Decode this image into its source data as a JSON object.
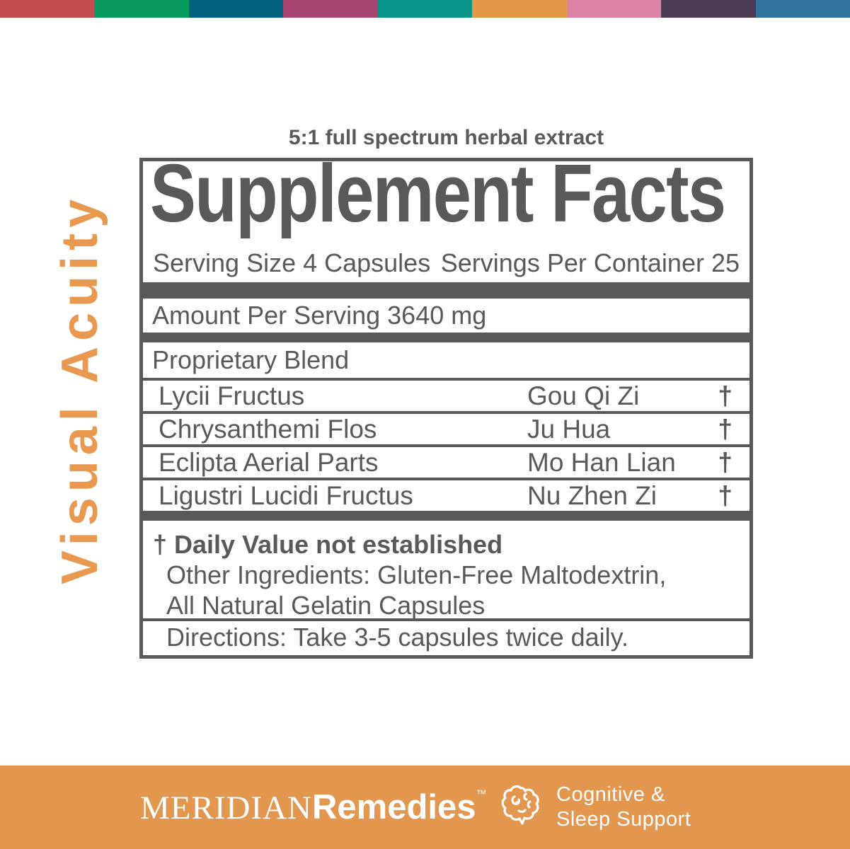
{
  "top_bar": {
    "colors": [
      "#C54D4F",
      "#089A5F",
      "#04607F",
      "#A84571",
      "#089488",
      "#E29847",
      "#DC83A5",
      "#4D3C54",
      "#32739E"
    ]
  },
  "side_label": "Visual Acuity",
  "tagline": "5:1 full spectrum herbal extract",
  "panel": {
    "title": "Supplement Facts",
    "serving_size": "Serving Size 4 Capsules",
    "servings_per_container": "Servings Per Container 25",
    "amount_per_serving": "Amount Per Serving 3640 mg",
    "blend_title": "Proprietary Blend",
    "ingredients": [
      {
        "name": "Lycii Fructus",
        "pinyin": "Gou Qi Zi",
        "daily_value": "†"
      },
      {
        "name": "Chrysanthemi Flos",
        "pinyin": "Ju Hua",
        "daily_value": "†"
      },
      {
        "name": "Eclipta Aerial Parts",
        "pinyin": "Mo Han Lian",
        "daily_value": "†"
      },
      {
        "name": "Ligustri Lucidi Fructus",
        "pinyin": "Nu Zhen Zi",
        "daily_value": "†"
      }
    ],
    "footnote": "† Daily Value not established",
    "other_ingredients_line1": "Other Ingredients: Gluten-Free Maltodextrin,",
    "other_ingredients_line2": "All Natural Gelatin Capsules",
    "directions": "Directions: Take 3-5 capsules twice daily."
  },
  "brand_bar": {
    "brand_serif": "MERIDIAN",
    "brand_sans": "Remedies",
    "trademark": "™",
    "category_line1": "Cognitive &",
    "category_line2": "Sleep Support"
  },
  "colors": {
    "text_gray": "#58595B",
    "accent_orange_text": "#E8994F",
    "bottom_bar_orange": "#E2964E"
  }
}
